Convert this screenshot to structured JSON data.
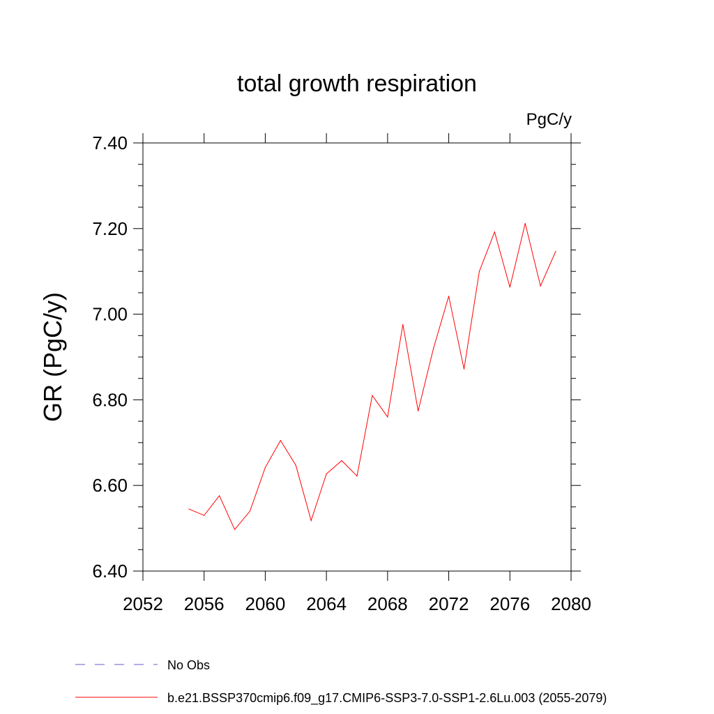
{
  "chart_data": {
    "type": "line",
    "title": "total growth respiration",
    "units_label": "PgC/y",
    "xlabel": "",
    "ylabel": "GR  (PgC/y)",
    "xlim": [
      2052,
      2080
    ],
    "ylim": [
      6.4,
      7.4
    ],
    "x_ticks": [
      "2052",
      "2056",
      "2060",
      "2064",
      "2068",
      "2072",
      "2076",
      "2080"
    ],
    "y_ticks": [
      "6.40",
      "6.60",
      "6.80",
      "7.00",
      "7.20",
      "7.40"
    ],
    "grid": false,
    "series": [
      {
        "name": "b.e21.BSSP370cmip6.f09_g17.CMIP6-SSP3-7.0-SSP1-2.6Lu.003 (2055-2079)",
        "color": "#ff0000",
        "style": "solid",
        "x": [
          2055,
          2056,
          2057,
          2058,
          2059,
          2060,
          2061,
          2062,
          2063,
          2064,
          2065,
          2066,
          2067,
          2068,
          2069,
          2070,
          2071,
          2072,
          2073,
          2074,
          2075,
          2076,
          2077,
          2078,
          2079
        ],
        "values": [
          6.545,
          6.53,
          6.576,
          6.497,
          6.54,
          6.642,
          6.705,
          6.647,
          6.518,
          6.627,
          6.658,
          6.622,
          6.81,
          6.76,
          6.976,
          6.774,
          6.92,
          7.042,
          6.872,
          7.1,
          7.192,
          7.063,
          7.212,
          7.066,
          7.147
        ]
      }
    ],
    "legend": [
      {
        "label": "No Obs",
        "color": "#6a5acd",
        "style": "dashed"
      },
      {
        "label": "b.e21.BSSP370cmip6.f09_g17.CMIP6-SSP3-7.0-SSP1-2.6Lu.003 (2055-2079)",
        "color": "#ff0000",
        "style": "solid"
      }
    ],
    "legend_position": "bottom-left"
  }
}
